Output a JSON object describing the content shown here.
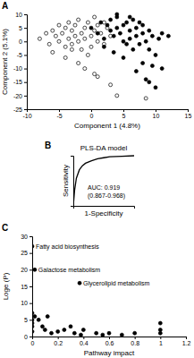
{
  "chart_data": [
    {
      "type": "scatter",
      "panel": "A",
      "x_label": "Component 1 (4.8%)",
      "y_label": "Component 2 (5.1%)",
      "xlim": [
        -10,
        15
      ],
      "xticks": [
        -10,
        -5,
        0,
        5,
        10,
        15
      ],
      "ylim": [
        -25,
        10
      ],
      "yticks": [
        -25,
        -20,
        -15,
        -10,
        -5,
        0,
        5,
        10
      ],
      "grid": false,
      "series": [
        {
          "color": "#000000",
          "marker": "open",
          "x": [
            -8,
            -7,
            -6.5,
            -6,
            -5.5,
            -5,
            -5,
            -4.5,
            -4,
            -4,
            -3.5,
            -3.5,
            -3,
            -3,
            -2.5,
            -2.5,
            -2,
            -2,
            -1.5,
            -1.5,
            -1,
            -1,
            -0.5,
            -0.5,
            0,
            0,
            0.5,
            0.5,
            1,
            1,
            1.5,
            2,
            2.5,
            3,
            -6,
            -4,
            -2,
            -1,
            1,
            3,
            4,
            -3,
            0.5,
            2,
            8.5
          ],
          "values": [
            1,
            3,
            -1,
            4,
            2,
            6,
            0,
            3,
            5,
            -2,
            1,
            7,
            4,
            -1,
            2,
            6,
            0,
            8,
            3,
            -3,
            5,
            1,
            -5,
            7,
            2,
            -2,
            4,
            9,
            0,
            6,
            3,
            -1,
            5,
            2,
            -4,
            -6,
            -8,
            -10,
            -13,
            -16,
            -20,
            -3,
            -12,
            7,
            -21
          ]
        },
        {
          "color": "#000000",
          "marker": "filled",
          "x": [
            0,
            1,
            1.5,
            2,
            2.5,
            3,
            3,
            3.5,
            4,
            4,
            4.5,
            5,
            5,
            5.5,
            6,
            6,
            6.5,
            7,
            7,
            7.5,
            8,
            8,
            8.5,
            9,
            9,
            9.5,
            10,
            10.5,
            11,
            12,
            2,
            3.5,
            5,
            6.5,
            8,
            9.5,
            7,
            8.5,
            9,
            10,
            11,
            6,
            4,
            5.5,
            7.5
          ],
          "values": [
            5,
            3,
            7,
            1,
            6,
            4,
            8,
            2,
            5,
            9,
            3,
            6,
            0,
            7,
            4,
            1,
            8,
            2,
            5,
            -1,
            6,
            3,
            0,
            4,
            -3,
            2,
            -5,
            1,
            3,
            2,
            -2,
            -4,
            -6,
            -3,
            -8,
            -9,
            -11,
            -14,
            -15,
            -17,
            -10,
            9,
            10,
            -1,
            7
          ]
        }
      ]
    },
    {
      "type": "line",
      "panel": "B",
      "title": "PLS-DA model",
      "x_label": "1-Specificity",
      "y_label": "Sensitivity",
      "xlim": [
        0,
        1
      ],
      "ylim": [
        0,
        1
      ],
      "tick_labels": false,
      "grid": false,
      "annotations": [
        {
          "text": "AUC: 0.919"
        },
        {
          "text": "(0.867-0.968)"
        }
      ],
      "series": [
        {
          "color": "#000000",
          "line_style": "solid",
          "x": [
            0,
            0.02,
            0.05,
            0.1,
            0.15,
            0.2,
            0.3,
            0.4,
            0.5,
            0.6,
            0.8,
            1
          ],
          "values": [
            0,
            0.3,
            0.55,
            0.72,
            0.8,
            0.85,
            0.9,
            0.94,
            0.96,
            0.98,
            0.99,
            1
          ]
        }
      ]
    },
    {
      "type": "scatter",
      "panel": "C",
      "x_label": "Pathway impact",
      "y_label": "Loge (P)",
      "xlim": [
        0,
        1.2
      ],
      "xticks": [
        0,
        0.2,
        0.4,
        0.6,
        0.8,
        1,
        1.2
      ],
      "ylim": [
        0,
        30
      ],
      "yticks": [
        0,
        5,
        10,
        15,
        20,
        25,
        30
      ],
      "grid": false,
      "annotations": [
        {
          "text": "Fatty acid biosynthesis",
          "x": 0,
          "y": 27
        },
        {
          "text": "Galactose metabolism",
          "x": 0.02,
          "y": 20
        },
        {
          "text": "Glycerolipid metabolism",
          "x": 0.37,
          "y": 16
        }
      ],
      "series": [
        {
          "color": "#000000",
          "marker": "filled",
          "x": [
            0,
            0.02,
            0.37,
            0,
            0,
            0,
            0,
            0,
            0.02,
            0.05,
            0.08,
            0.1,
            0.12,
            0.15,
            0.2,
            0.25,
            0.3,
            0.33,
            0.38,
            0.4,
            0.5,
            0.55,
            0.6,
            0.7,
            0.8,
            1,
            1,
            1
          ],
          "values": [
            27,
            20,
            16,
            7,
            5,
            4,
            3,
            1.5,
            6,
            5,
            3,
            2,
            6,
            1,
            1.5,
            2,
            3,
            1,
            0.5,
            2,
            1,
            0.5,
            1,
            0.5,
            1,
            4,
            2,
            1
          ]
        }
      ]
    }
  ]
}
